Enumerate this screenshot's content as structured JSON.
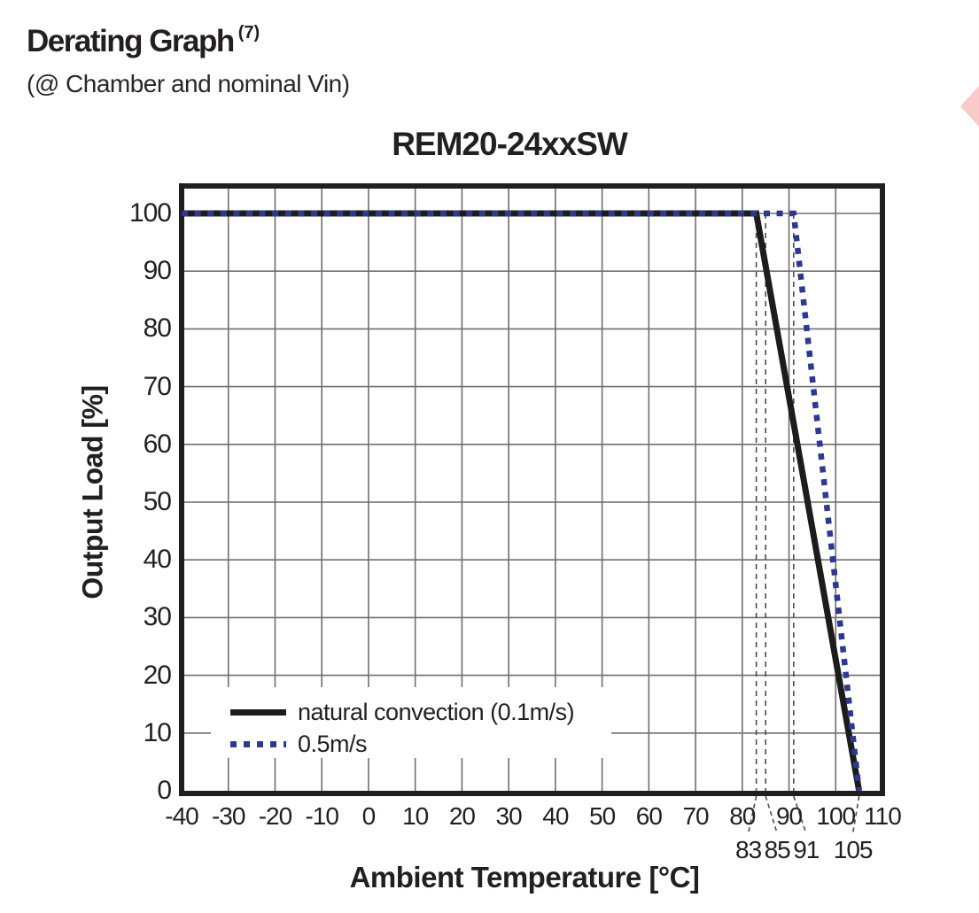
{
  "header": {
    "title": "Derating Graph",
    "footnote": "(7)",
    "subtitle": "(@ Chamber and nominal Vin)"
  },
  "chart_data": {
    "type": "line",
    "title": "REM20-24xxSW",
    "xlabel": "Ambient Temperature [°C]",
    "ylabel": "Output Load [%]",
    "xlim": [
      -40,
      110
    ],
    "ylim": [
      0,
      105
    ],
    "grid": true,
    "legend_position": "inside-bottom-left",
    "x_ticks": [
      -40,
      -30,
      -20,
      -10,
      0,
      10,
      20,
      30,
      40,
      50,
      60,
      70,
      80,
      90,
      100,
      110
    ],
    "y_ticks": [
      0,
      10,
      20,
      30,
      40,
      50,
      60,
      70,
      80,
      90,
      100
    ],
    "series": [
      {
        "name": "natural convection (0.1m/s)",
        "line_style": "solid",
        "color": "#1c1c1c",
        "points": [
          [
            -40,
            100
          ],
          [
            83,
            100
          ],
          [
            105,
            0
          ]
        ]
      },
      {
        "name": "0.5m/s",
        "line_style": "dotted",
        "color": "#2b3990",
        "points": [
          [
            -40,
            100
          ],
          [
            91,
            100
          ],
          [
            105,
            0
          ]
        ]
      }
    ],
    "breakpoints": [
      {
        "label": "83",
        "x": 83,
        "guide": "full"
      },
      {
        "label": "85",
        "x": 85,
        "guide": "full"
      },
      {
        "label": "91",
        "x": 91,
        "guide": "full"
      },
      {
        "label": "105",
        "x": 105,
        "guide": "below-axis"
      }
    ]
  },
  "colors": {
    "text": "#231f20",
    "axis_frame": "#1f1f1f",
    "gridline": "#6f6f6f",
    "guide_dash": "#4d4d4d",
    "accent_blue": "#2b3990",
    "page_arrow_pink": "#f8caca"
  }
}
